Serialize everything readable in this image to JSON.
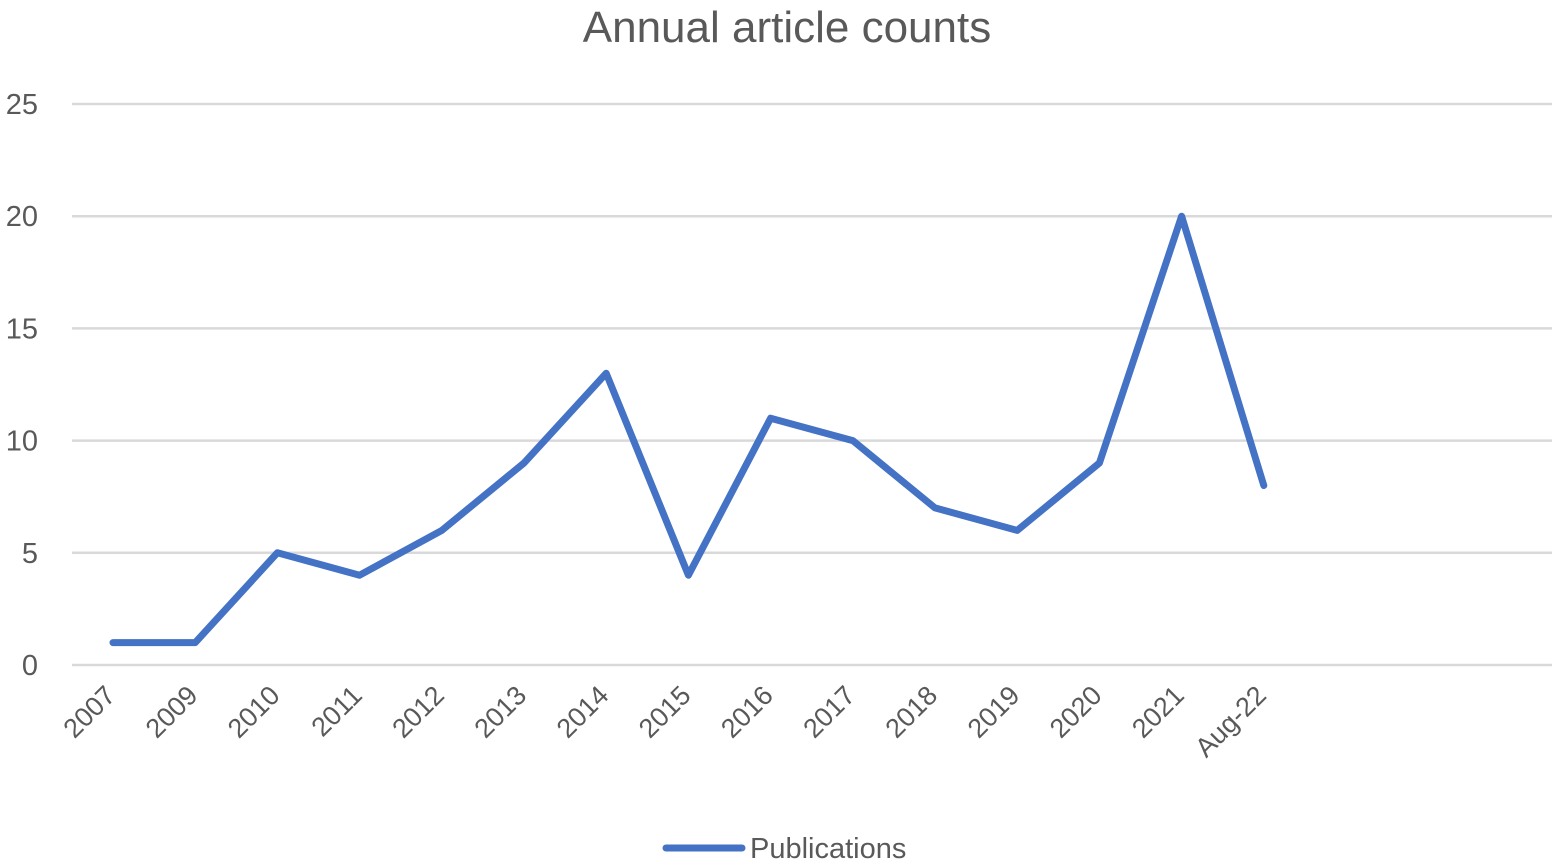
{
  "chart_data": {
    "type": "line",
    "title": "Annual article counts",
    "xlabel": "",
    "ylabel": "",
    "categories": [
      "2007",
      "2009",
      "2010",
      "2011",
      "2012",
      "2013",
      "2014",
      "2015",
      "2016",
      "2017",
      "2018",
      "2019",
      "2020",
      "2021",
      "Aug-22"
    ],
    "series": [
      {
        "name": "Publications",
        "color": "#4472c4",
        "values": [
          1,
          1,
          5,
          4,
          6,
          9,
          13,
          4,
          11,
          10,
          7,
          6,
          9,
          20,
          8
        ]
      }
    ],
    "ylim": [
      0,
      25
    ],
    "yticks": [
      0,
      5,
      10,
      15,
      20,
      25
    ],
    "grid": true,
    "legend": "bottom-center"
  }
}
